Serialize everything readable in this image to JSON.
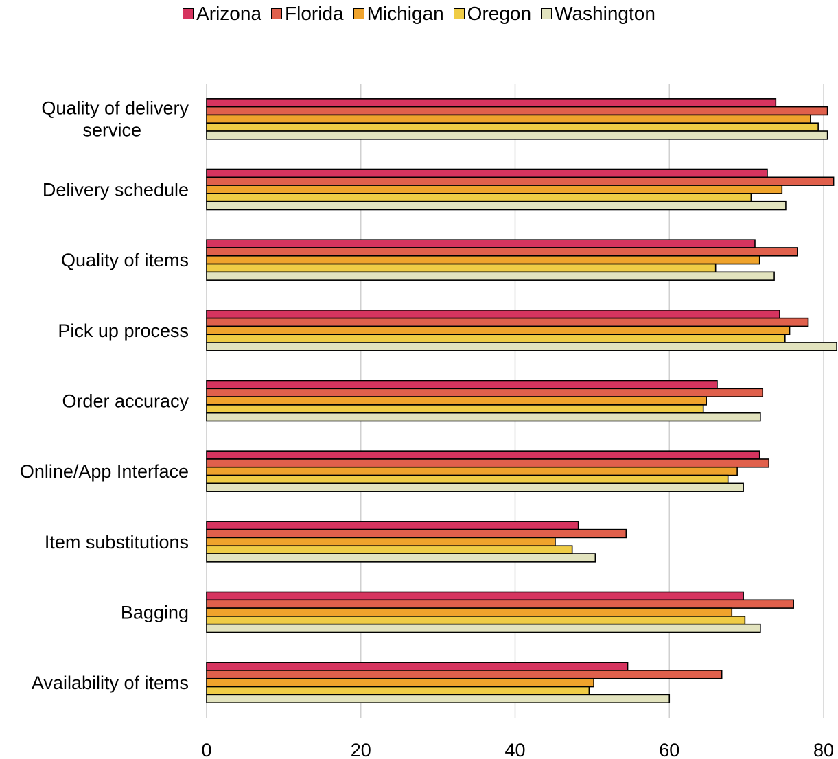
{
  "chart_data": {
    "type": "bar",
    "orientation": "horizontal",
    "categories": [
      "Quality of delivery service",
      "Delivery schedule",
      "Quality of items",
      "Pick up process",
      "Order accuracy",
      "Online/App Interface",
      "Item substitutions",
      "Bagging",
      "Availability of items"
    ],
    "series": [
      {
        "name": "Arizona",
        "color": "#D6345F",
        "values": [
          73.8,
          72.7,
          71.1,
          74.3,
          66.2,
          71.7,
          48.2,
          69.6,
          54.6
        ]
      },
      {
        "name": "Florida",
        "color": "#E0604C",
        "values": [
          80.5,
          81.3,
          76.6,
          78.0,
          72.1,
          72.9,
          54.4,
          76.1,
          66.8
        ]
      },
      {
        "name": "Michigan",
        "color": "#EFA32C",
        "values": [
          78.3,
          74.6,
          71.7,
          75.6,
          64.8,
          68.8,
          45.2,
          68.1,
          50.2
        ]
      },
      {
        "name": "Oregon",
        "color": "#EFCC45",
        "values": [
          79.3,
          70.6,
          66.0,
          75.0,
          64.4,
          67.6,
          47.4,
          69.8,
          49.6
        ]
      },
      {
        "name": "Washington",
        "color": "#E2E3BE",
        "values": [
          80.5,
          75.1,
          73.6,
          81.7,
          71.8,
          69.6,
          50.4,
          71.8,
          60.0
        ]
      }
    ],
    "x_ticks": [
      "0",
      "20",
      "40",
      "60",
      "80"
    ],
    "xlim": [
      0,
      80
    ],
    "grid": true,
    "legend_position": "top-center"
  }
}
